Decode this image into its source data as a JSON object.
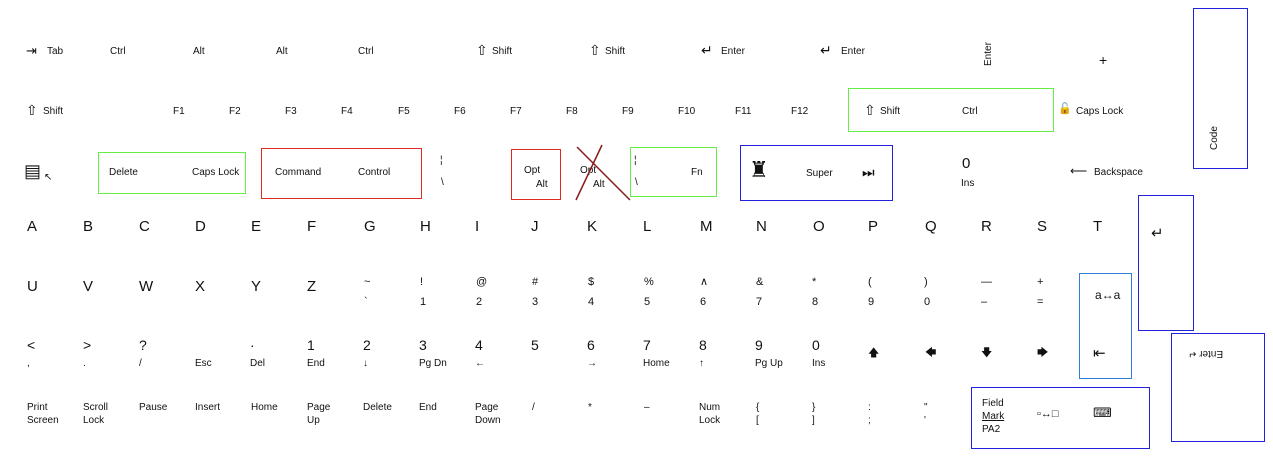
{
  "row1": {
    "tab": "Tab",
    "ctrl1": "Ctrl",
    "alt1": "Alt",
    "alt2": "Alt",
    "ctrl2": "Ctrl",
    "shift1": "Shift",
    "shift2": "Shift",
    "enter1": "Enter",
    "enter2": "Enter",
    "enter_vertical": "Enter",
    "plus": "+"
  },
  "row2": {
    "shift": "Shift",
    "fkeys": [
      "F1",
      "F2",
      "F3",
      "F4",
      "F5",
      "F6",
      "F7",
      "F8",
      "F9",
      "F10",
      "F11",
      "F12"
    ],
    "group_shift": "Shift",
    "group_ctrl": "Ctrl",
    "caps_lock": "Caps Lock"
  },
  "row3": {
    "delete": "Delete",
    "caps_lock": "Caps Lock",
    "command": "Command",
    "control": "Control",
    "broken_bar": "¦",
    "backslash": "\\",
    "opt": "Opt",
    "alt": "Alt",
    "crossed_opt": "Opt",
    "crossed_alt": "Alt",
    "fn_bar": "¦",
    "fn_backslash": "\\",
    "fn": "Fn",
    "super": "Super",
    "media_next": "⏭",
    "zero": "0",
    "ins": "Ins",
    "backspace": "Backspace",
    "code": "Code"
  },
  "letters1": [
    "A",
    "B",
    "C",
    "D",
    "E",
    "F",
    "G",
    "H",
    "I",
    "J",
    "K",
    "L",
    "M",
    "N",
    "O",
    "P",
    "Q",
    "R",
    "S",
    "T"
  ],
  "return_glyph": "↵",
  "letters2": [
    "U",
    "V",
    "W",
    "X",
    "Y",
    "Z"
  ],
  "symbols": [
    {
      "top": "~",
      "bottom": "`"
    },
    {
      "top": "!",
      "bottom": "1"
    },
    {
      "top": "@",
      "bottom": "2"
    },
    {
      "top": "#",
      "bottom": "3"
    },
    {
      "top": "$",
      "bottom": "4"
    },
    {
      "top": "%",
      "bottom": "5"
    },
    {
      "top": "∧",
      "bottom": "6"
    },
    {
      "top": "&",
      "bottom": "7"
    },
    {
      "top": "*",
      "bottom": "8"
    },
    {
      "top": "(",
      "bottom": "9"
    },
    {
      "top": ")",
      "bottom": "0"
    },
    {
      "top": "—",
      "bottom": "–"
    },
    {
      "top": "+",
      "bottom": "="
    }
  ],
  "case_toggle": "a↔a",
  "backtab": "⇤",
  "row6": [
    {
      "top": "<",
      "bottom": ","
    },
    {
      "top": ">",
      "bottom": "."
    },
    {
      "top": "?",
      "bottom": "/"
    },
    {
      "top": "",
      "bottom": "Esc"
    },
    {
      "top": "·",
      "bottom": "Del"
    },
    {
      "top": "1",
      "bottom": "End"
    },
    {
      "top": "2",
      "bottom": "↓"
    },
    {
      "top": "3",
      "bottom": "Pg Dn"
    },
    {
      "top": "4",
      "bottom": "←"
    },
    {
      "top": "5",
      "bottom": ""
    },
    {
      "top": "6",
      "bottom": "→"
    },
    {
      "top": "7",
      "bottom": "Home"
    },
    {
      "top": "8",
      "bottom": "↑"
    },
    {
      "top": "9",
      "bottom": "Pg Up"
    },
    {
      "top": "0",
      "bottom": "Ins"
    }
  ],
  "arrows": [
    "🡅",
    "🡄",
    "🡇",
    "🡆"
  ],
  "enter_rotated": "Enter ↵",
  "row7": [
    {
      "top": "Print",
      "bottom": "Screen"
    },
    {
      "top": "Scroll",
      "bottom": "Lock"
    },
    {
      "top": "Pause",
      "bottom": ""
    },
    {
      "top": "Insert",
      "bottom": ""
    },
    {
      "top": "Home",
      "bottom": ""
    },
    {
      "top": "Page",
      "bottom": "Up"
    },
    {
      "top": "Delete",
      "bottom": ""
    },
    {
      "top": "End",
      "bottom": ""
    },
    {
      "top": "Page",
      "bottom": "Down"
    },
    {
      "top": "/",
      "bottom": ""
    },
    {
      "top": "*",
      "bottom": ""
    },
    {
      "top": "–",
      "bottom": ""
    },
    {
      "top": "Num",
      "bottom": "Lock"
    },
    {
      "top": "{",
      "bottom": "["
    },
    {
      "top": "}",
      "bottom": "]"
    },
    {
      "top": ":",
      "bottom": ";"
    },
    {
      "top": "\"",
      "bottom": "'"
    }
  ],
  "field_mark": {
    "l1": "Field",
    "l2": "Mark",
    "l3": "PA2",
    "swap": "▫↔□",
    "icon": "keyboard-icon"
  },
  "icons": {
    "tab": "tab-arrow-icon",
    "shift": "shift-arrow-icon",
    "enter": "enter-arrow-icon",
    "lock": "padlock-icon",
    "menu": "context-menu-icon",
    "super": "super-figure-icon"
  },
  "colors": {
    "green": "#66ee44",
    "red": "#dd2b22",
    "blue": "#2222dd",
    "light_blue": "#2f7fd6"
  }
}
